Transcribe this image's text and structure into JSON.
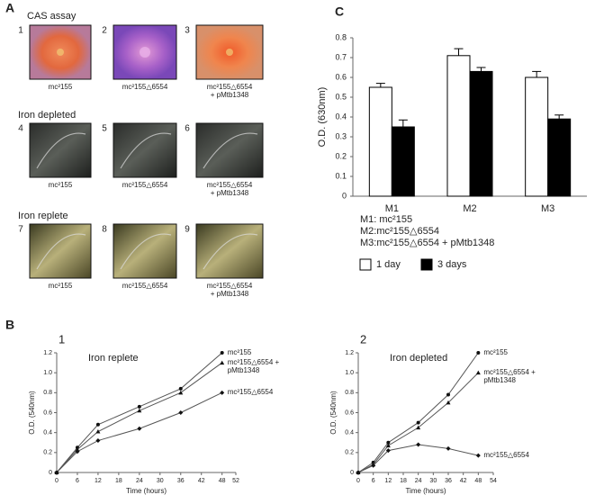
{
  "panel_labels": {
    "a": "A",
    "b": "B",
    "c": "C"
  },
  "panel_a": {
    "sections": [
      {
        "title": "CAS assay",
        "items": [
          {
            "number": 1,
            "caption": [
              "mc²155"
            ]
          },
          {
            "number": 2,
            "caption": [
              "mc²155△6554"
            ]
          },
          {
            "number": 3,
            "caption": [
              "mc²155△6554",
              "+ pMtb1348"
            ]
          }
        ]
      },
      {
        "title": "Iron depleted",
        "items": [
          {
            "number": 4,
            "caption": [
              "mc²155"
            ]
          },
          {
            "number": 5,
            "caption": [
              "mc²155△6554"
            ]
          },
          {
            "number": 6,
            "caption": [
              "mc²155△6554",
              "+ pMtb1348"
            ]
          }
        ]
      },
      {
        "title": "Iron replete",
        "items": [
          {
            "number": 7,
            "caption": [
              "mc²155"
            ]
          },
          {
            "number": 8,
            "caption": [
              "mc²155△6554"
            ]
          },
          {
            "number": 9,
            "caption": [
              "mc²155△6554",
              "+ pMtb1348"
            ]
          }
        ]
      }
    ]
  },
  "chart_data": [
    {
      "type": "bar",
      "y_label": "O.D. (630nm)",
      "categories": [
        "M1",
        "M2",
        "M3"
      ],
      "series": [
        {
          "name": "1 day",
          "color": "#ffffff",
          "values": [
            0.55,
            0.71,
            0.6
          ],
          "errors": [
            0.02,
            0.035,
            0.03
          ]
        },
        {
          "name": "3 days",
          "color": "#000000",
          "values": [
            0.35,
            0.63,
            0.39
          ],
          "errors": [
            0.035,
            0.02,
            0.02
          ]
        }
      ],
      "ylim": [
        0,
        0.8
      ],
      "yticks": [
        0,
        0.1,
        0.2,
        0.3,
        0.4,
        0.5,
        0.6,
        0.7,
        0.8
      ],
      "annotations": [
        "M1: mc²155",
        "M2:mc²155△6554",
        "M3:mc²155△6554 + pMtb1348"
      ],
      "legend": "below"
    },
    {
      "type": "line",
      "number": 1,
      "title": "Iron replete",
      "x_label": "Time (hours)",
      "y_label": "O.D. (540nm)",
      "x": [
        0,
        6,
        12,
        24,
        36,
        48
      ],
      "series": [
        {
          "name": "mc²155",
          "color": "#555555",
          "marker": "circle",
          "values": [
            0,
            0.25,
            0.48,
            0.66,
            0.84,
            1.2
          ]
        },
        {
          "name": "mc²155△6554 + pMtb1348",
          "color": "#555555",
          "marker": "triangle",
          "values": [
            0,
            0.23,
            0.41,
            0.62,
            0.8,
            1.1
          ]
        },
        {
          "name": "mc²155△6554",
          "color": "#555555",
          "marker": "diamond",
          "values": [
            0,
            0.21,
            0.32,
            0.44,
            0.6,
            0.8
          ]
        }
      ],
      "xlim": [
        0,
        52
      ],
      "xticks": [
        0,
        6,
        12,
        18,
        24,
        30,
        36,
        42,
        48,
        52
      ],
      "ylim": [
        0,
        1.2
      ],
      "yticks": [
        0,
        0.2,
        0.4,
        0.6,
        0.8,
        {
          "value": 1,
          "label": "1.0"
        },
        1.2
      ]
    },
    {
      "type": "line",
      "number": 2,
      "title": "Iron depleted",
      "x_label": "Time (hours)",
      "y_label": "O.D. (540nm)",
      "x": [
        0,
        6,
        12,
        24,
        36,
        48
      ],
      "series": [
        {
          "name": "mc²155",
          "color": "#555555",
          "marker": "circle",
          "values": [
            0,
            0.1,
            0.3,
            0.5,
            0.78,
            1.2
          ]
        },
        {
          "name": "mc²155△6554 + pMtb1348",
          "color": "#555555",
          "marker": "triangle",
          "values": [
            0,
            0.08,
            0.27,
            0.45,
            0.7,
            1.0
          ]
        },
        {
          "name": "mc²155△6554",
          "color": "#555555",
          "marker": "diamond",
          "values": [
            0,
            0.07,
            0.22,
            0.28,
            0.24,
            0.17
          ]
        }
      ],
      "xlim": [
        0,
        54
      ],
      "xticks": [
        0,
        6,
        12,
        18,
        24,
        30,
        36,
        42,
        48,
        54
      ],
      "ylim": [
        0,
        1.2
      ],
      "yticks": [
        0,
        0.2,
        0.4,
        0.6,
        0.8,
        {
          "value": 1,
          "label": "1.0"
        },
        1.2
      ]
    }
  ]
}
